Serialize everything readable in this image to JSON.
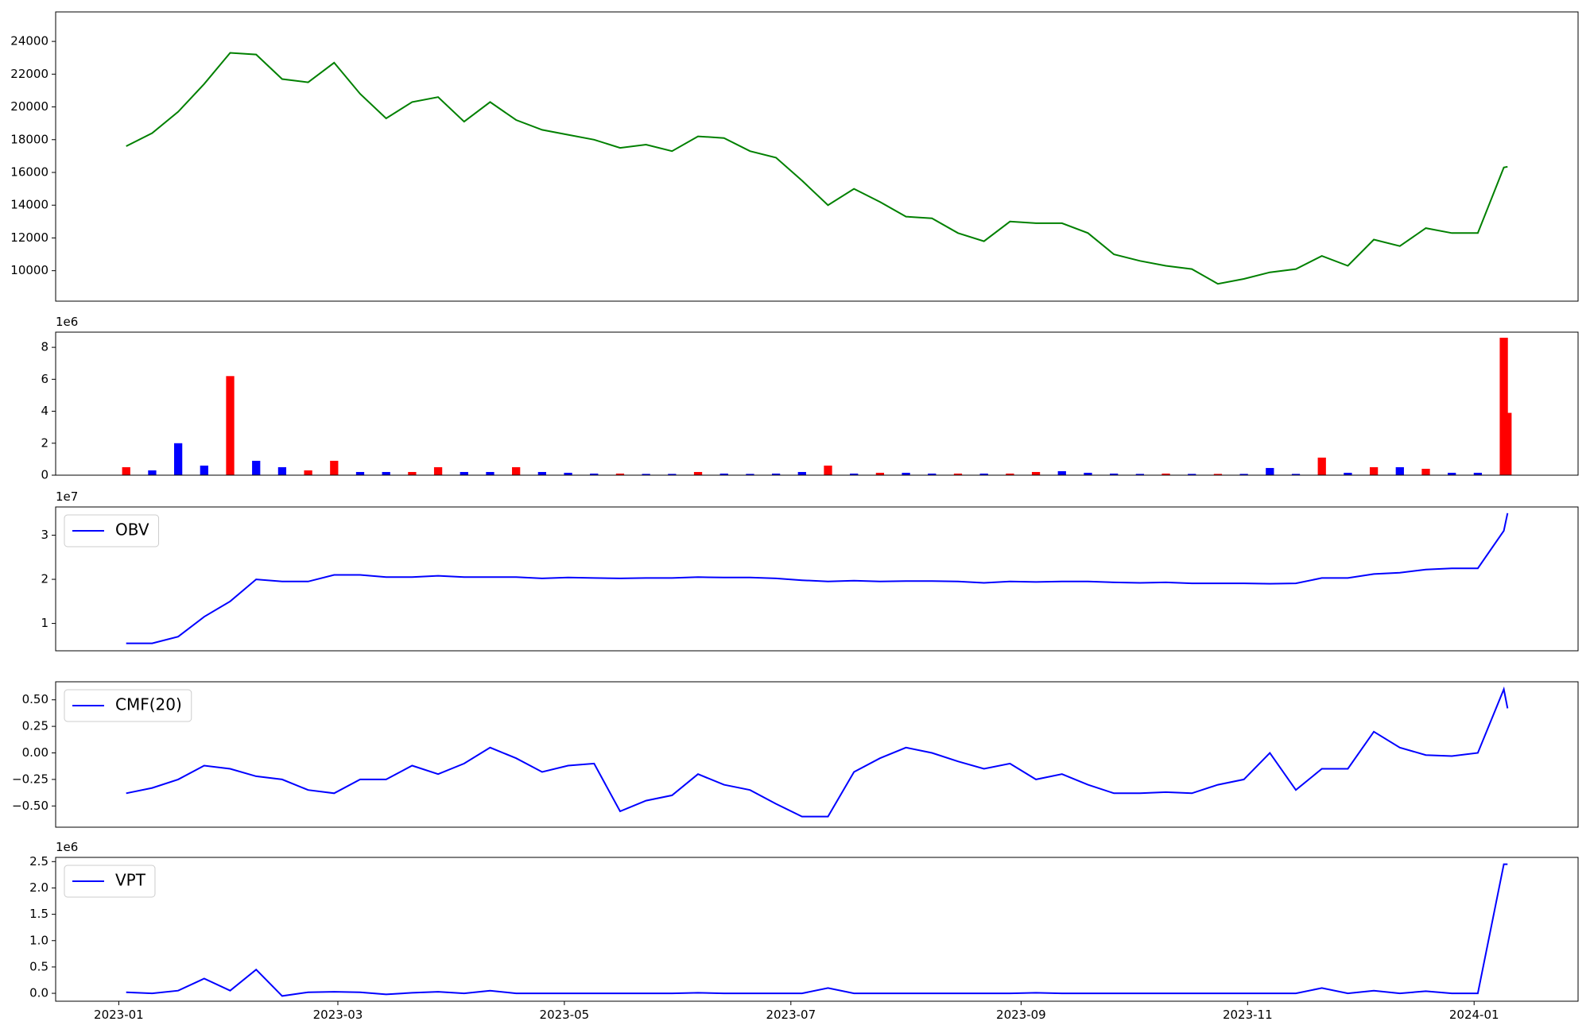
{
  "chart_data": [
    {
      "type": "line",
      "color": "#008000",
      "values": [
        17600,
        18400,
        19700,
        21400,
        23300,
        23200,
        21700,
        21500,
        22700,
        20800,
        19300,
        20300,
        20600,
        19100,
        20300,
        19200,
        18600,
        18300,
        18000,
        17500,
        17700,
        17300,
        18200,
        18100,
        17300,
        16900,
        15500,
        14000,
        15000,
        14200,
        13300,
        13200,
        12300,
        11800,
        13000,
        12900,
        12900,
        12300,
        11000,
        10600,
        10300,
        10100,
        9200,
        9500,
        9900,
        10100,
        10900,
        10300,
        11900,
        11500,
        12600,
        12300,
        12300,
        16300,
        16350
      ],
      "ylim": [
        8140,
        25800
      ],
      "yticks": [
        10000,
        12000,
        14000,
        16000,
        18000,
        20000,
        22000,
        24000
      ]
    },
    {
      "type": "bar",
      "offset_label": "1e6",
      "values": [
        500000,
        300000,
        2000000,
        600000,
        6200000,
        900000,
        500000,
        300000,
        900000,
        200000,
        200000,
        200000,
        500000,
        200000,
        200000,
        500000,
        200000,
        150000,
        100000,
        100000,
        80000,
        80000,
        200000,
        100000,
        80000,
        100000,
        200000,
        600000,
        100000,
        150000,
        150000,
        100000,
        100000,
        100000,
        100000,
        200000,
        250000,
        150000,
        100000,
        80000,
        100000,
        80000,
        80000,
        80000,
        450000,
        80000,
        1100000,
        150000,
        500000,
        500000,
        400000,
        150000,
        150000,
        8600000,
        3900000
      ],
      "colors": [
        "#ff0000",
        "#0000ff",
        "#0000ff",
        "#0000ff",
        "#ff0000",
        "#0000ff",
        "#0000ff",
        "#ff0000",
        "#ff0000",
        "#0000ff",
        "#0000ff",
        "#ff0000",
        "#ff0000",
        "#0000ff",
        "#0000ff",
        "#ff0000",
        "#0000ff",
        "#0000ff",
        "#0000ff",
        "#ff0000",
        "#0000ff",
        "#0000ff",
        "#ff0000",
        "#0000ff",
        "#0000ff",
        "#0000ff",
        "#0000ff",
        "#ff0000",
        "#0000ff",
        "#ff0000",
        "#0000ff",
        "#0000ff",
        "#ff0000",
        "#0000ff",
        "#ff0000",
        "#ff0000",
        "#0000ff",
        "#0000ff",
        "#0000ff",
        "#0000ff",
        "#ff0000",
        "#0000ff",
        "#ff0000",
        "#0000ff",
        "#0000ff",
        "#0000ff",
        "#ff0000",
        "#0000ff",
        "#ff0000",
        "#0000ff",
        "#ff0000",
        "#0000ff",
        "#0000ff",
        "#ff0000",
        "#ff0000"
      ],
      "ylim": [
        0,
        8950000
      ],
      "yticks": [
        {
          "value": 0,
          "label": "0"
        },
        {
          "value": 2000000,
          "label": "2"
        },
        {
          "value": 4000000,
          "label": "4"
        },
        {
          "value": 6000000,
          "label": "6"
        },
        {
          "value": 8000000,
          "label": "8"
        }
      ]
    },
    {
      "type": "line",
      "offset_label": "1e7",
      "legend": "upper left",
      "series": [
        {
          "name": "OBV",
          "color": "#0000ff",
          "values": [
            5500000,
            5500000,
            7000000,
            11500000,
            15000000,
            20000000,
            19500000,
            19500000,
            21000000,
            21000000,
            20500000,
            20500000,
            20800000,
            20500000,
            20500000,
            20500000,
            20200000,
            20400000,
            20300000,
            20200000,
            20300000,
            20300000,
            20500000,
            20400000,
            20400000,
            20200000,
            19800000,
            19500000,
            19700000,
            19500000,
            19600000,
            19600000,
            19500000,
            19200000,
            19500000,
            19400000,
            19500000,
            19500000,
            19300000,
            19200000,
            19300000,
            19100000,
            19100000,
            19100000,
            19000000,
            19100000,
            20300000,
            20300000,
            21200000,
            21500000,
            22200000,
            22500000,
            22500000,
            31000000,
            35000000
          ]
        }
      ],
      "ylim": [
        3800000,
        36400000
      ],
      "yticks": [
        {
          "value": 10000000,
          "label": "1"
        },
        {
          "value": 20000000,
          "label": "2"
        },
        {
          "value": 30000000,
          "label": "3"
        }
      ]
    },
    {
      "type": "line",
      "legend": "upper left",
      "series": [
        {
          "name": "CMF(20)",
          "color": "#0000ff",
          "values": [
            -0.38,
            -0.33,
            -0.25,
            -0.12,
            -0.15,
            -0.22,
            -0.25,
            -0.35,
            -0.38,
            -0.25,
            -0.25,
            -0.12,
            -0.2,
            -0.1,
            0.05,
            -0.05,
            -0.18,
            -0.12,
            -0.1,
            -0.55,
            -0.45,
            -0.4,
            -0.2,
            -0.3,
            -0.35,
            -0.48,
            -0.6,
            -0.6,
            -0.18,
            -0.05,
            0.05,
            0.0,
            -0.08,
            -0.15,
            -0.1,
            -0.25,
            -0.2,
            -0.3,
            -0.38,
            -0.38,
            -0.37,
            -0.38,
            -0.3,
            -0.25,
            0.0,
            -0.35,
            -0.15,
            -0.15,
            0.2,
            0.05,
            -0.02,
            -0.03,
            0.0,
            0.6,
            0.42
          ]
        }
      ],
      "ylim": [
        -0.7,
        0.67
      ],
      "yticks": [
        {
          "value": -0.5,
          "label": "−0.50"
        },
        {
          "value": -0.25,
          "label": "−0.25"
        },
        {
          "value": 0,
          "label": "0.00"
        },
        {
          "value": 0.25,
          "label": "0.25"
        },
        {
          "value": 0.5,
          "label": "0.50"
        }
      ]
    },
    {
      "type": "line",
      "offset_label": "1e6",
      "legend": "upper left",
      "series": [
        {
          "name": "VPT",
          "color": "#0000ff",
          "values": [
            20000,
            0,
            50000,
            280000,
            50000,
            450000,
            -50000,
            20000,
            30000,
            20000,
            -20000,
            10000,
            30000,
            0,
            50000,
            0,
            0,
            0,
            0,
            0,
            0,
            0,
            10000,
            0,
            0,
            0,
            0,
            100000,
            0,
            0,
            0,
            0,
            0,
            0,
            0,
            10000,
            0,
            0,
            0,
            0,
            0,
            0,
            0,
            0,
            0,
            0,
            100000,
            0,
            50000,
            0,
            40000,
            0,
            0,
            2450000,
            2450000
          ]
        }
      ],
      "ylim": [
        -150000,
        2580000
      ],
      "yticks": [
        {
          "value": 0,
          "label": "0.0"
        },
        {
          "value": 500000,
          "label": "0.5"
        },
        {
          "value": 1000000,
          "label": "1.0"
        },
        {
          "value": 1500000,
          "label": "1.5"
        },
        {
          "value": 2000000,
          "label": "2.0"
        },
        {
          "value": 2500000,
          "label": "2.5"
        }
      ],
      "x": [
        "2023-01-03",
        "2023-01-10",
        "2023-01-17",
        "2023-01-24",
        "2023-01-31",
        "2023-02-07",
        "2023-02-14",
        "2023-02-21",
        "2023-02-28",
        "2023-03-07",
        "2023-03-14",
        "2023-03-21",
        "2023-03-28",
        "2023-04-04",
        "2023-04-11",
        "2023-04-18",
        "2023-04-25",
        "2023-05-02",
        "2023-05-09",
        "2023-05-16",
        "2023-05-23",
        "2023-05-30",
        "2023-06-06",
        "2023-06-13",
        "2023-06-20",
        "2023-06-27",
        "2023-07-04",
        "2023-07-11",
        "2023-07-18",
        "2023-07-25",
        "2023-08-01",
        "2023-08-08",
        "2023-08-15",
        "2023-08-22",
        "2023-08-29",
        "2023-09-05",
        "2023-09-12",
        "2023-09-19",
        "2023-09-26",
        "2023-10-03",
        "2023-10-10",
        "2023-10-17",
        "2023-10-24",
        "2023-10-31",
        "2023-11-07",
        "2023-11-14",
        "2023-11-21",
        "2023-11-28",
        "2023-12-05",
        "2023-12-12",
        "2023-12-19",
        "2023-12-26",
        "2024-01-02",
        "2024-01-09",
        "2024-01-10"
      ],
      "xlim": [
        "2022-12-15",
        "2024-01-29"
      ],
      "xticks": [
        {
          "value": "2023-01-01",
          "label": "2023-01"
        },
        {
          "value": "2023-03-01",
          "label": "2023-03"
        },
        {
          "value": "2023-05-01",
          "label": "2023-05"
        },
        {
          "value": "2023-07-01",
          "label": "2023-07"
        },
        {
          "value": "2023-09-01",
          "label": "2023-09"
        },
        {
          "value": "2023-11-01",
          "label": "2023-11"
        },
        {
          "value": "2024-01-01",
          "label": "2024-01"
        }
      ]
    }
  ]
}
